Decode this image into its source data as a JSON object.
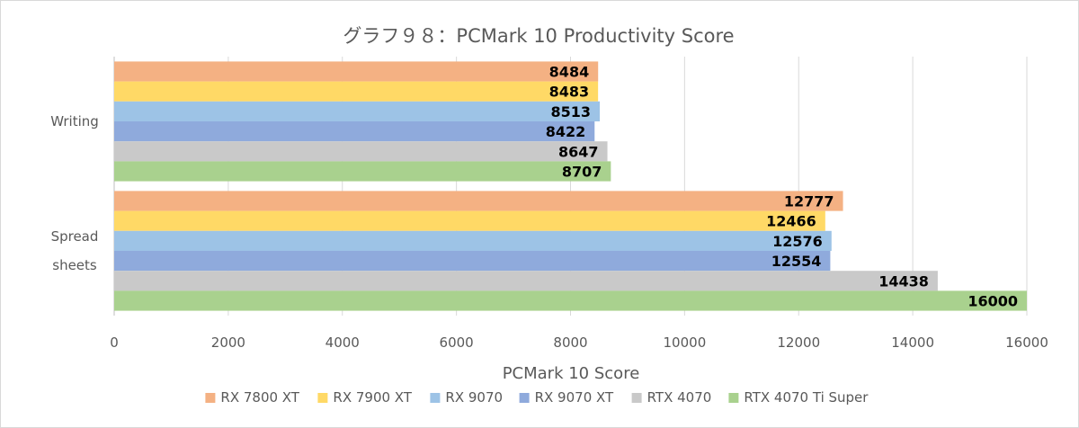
{
  "chart_data": {
    "type": "bar",
    "orientation": "horizontal",
    "title": "グラフ９８：PCMark 10 Productivity Score",
    "xlabel": "PCMark 10 Score",
    "ylabel": "",
    "xlim": [
      0,
      16000
    ],
    "xticks": [
      0,
      2000,
      4000,
      6000,
      8000,
      10000,
      12000,
      14000,
      16000
    ],
    "grid": true,
    "legend_position": "bottom",
    "categories": [
      {
        "lines": [
          "Writing"
        ]
      },
      {
        "lines": [
          "Spread",
          "sheets"
        ]
      }
    ],
    "series": [
      {
        "name": "RX 7800 XT",
        "color": "#f4b183",
        "values": [
          8484,
          12777
        ]
      },
      {
        "name": "RX 7900 XT",
        "color": "#ffd966",
        "values": [
          8483,
          12466
        ]
      },
      {
        "name": "RX 9070",
        "color": "#9dc3e6",
        "values": [
          8513,
          12576
        ]
      },
      {
        "name": "RX 9070 XT",
        "color": "#8faadc",
        "values": [
          8422,
          12554
        ]
      },
      {
        "name": "RTX 4070",
        "color": "#c9c9c9",
        "values": [
          8647,
          14438
        ]
      },
      {
        "name": "RTX 4070 Ti Super",
        "color": "#a9d18e",
        "values": [
          8707,
          16000
        ]
      }
    ]
  }
}
